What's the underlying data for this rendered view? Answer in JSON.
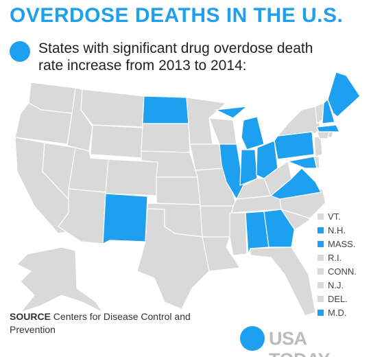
{
  "title": "OVERDOSE DEATHS IN THE U.S.",
  "legend": {
    "label": "States with significant drug overdose death rate increase from 2013 to 2014:",
    "color": "#1ea0f0"
  },
  "base_color": "#d9d9d9",
  "small_states": [
    {
      "label": "VT.",
      "highlighted": false
    },
    {
      "label": "N.H.",
      "highlighted": true
    },
    {
      "label": "MASS.",
      "highlighted": true
    },
    {
      "label": "R.I.",
      "highlighted": false
    },
    {
      "label": "CONN.",
      "highlighted": false
    },
    {
      "label": "N.J.",
      "highlighted": false
    },
    {
      "label": "DEL.",
      "highlighted": false
    },
    {
      "label": "M.D.",
      "highlighted": true
    }
  ],
  "source": {
    "label": "SOURCE",
    "text": "Centers for Disease Control and Prevention"
  },
  "logo": "USA TODAY"
}
